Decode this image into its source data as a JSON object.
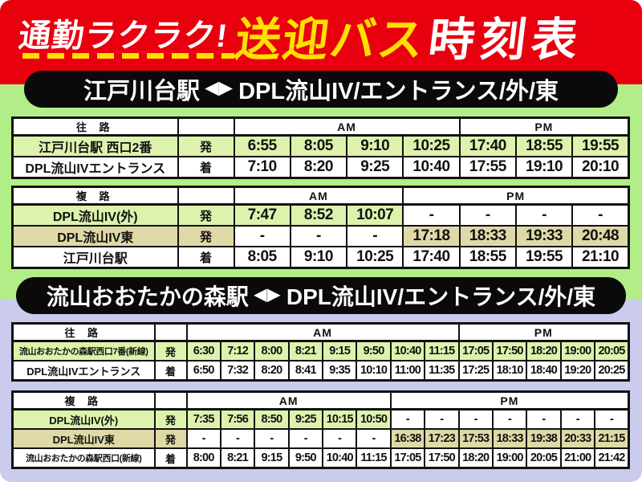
{
  "title": {
    "tagline": "通勤ラクラク!",
    "main_yellow": "送迎バス",
    "main_white": "時刻表"
  },
  "colors": {
    "header_red": "#e8000f",
    "accent_yellow": "#ffe100",
    "page_green": "#b2ee87",
    "page_lavender": "#cbcbed",
    "row_green": "#ddf3ad",
    "row_tan": "#ded9a6",
    "banner_black": "#0a0a0a",
    "table_border": "#111111"
  },
  "banners": [
    {
      "left": "江戸川台駅",
      "arrows": "◀▶",
      "right": "DPL流山IV/エントランス/外/東"
    },
    {
      "left": "流山おおたかの森駅",
      "arrows": "◀▶",
      "right": "DPL流山IV/エントランス/外/東"
    }
  ],
  "tables": [
    {
      "direction_label": "往 路",
      "am_label": "AM",
      "pm_label": "PM",
      "am_cols": 4,
      "pm_cols": 3,
      "rows": [
        {
          "station": "江戸川台駅 西口2番",
          "mark": "発",
          "bg": "green",
          "times": [
            "6:55",
            "8:05",
            "9:10",
            "10:25",
            "17:40",
            "18:55",
            "19:55"
          ]
        },
        {
          "station": "DPL流山IVエントランス",
          "mark": "着",
          "bg": "white",
          "times": [
            "7:10",
            "8:20",
            "9:25",
            "10:40",
            "17:55",
            "19:10",
            "20:10"
          ]
        }
      ]
    },
    {
      "direction_label": "複 路",
      "am_label": "AM",
      "pm_label": "PM",
      "am_cols": 3,
      "pm_cols": 4,
      "rows": [
        {
          "station": "DPL流山IV(外)",
          "mark": "発",
          "bg": "green",
          "times": [
            "7:47",
            "8:52",
            "10:07",
            "-",
            "-",
            "-",
            "-"
          ]
        },
        {
          "station": "DPL流山IV東",
          "mark": "発",
          "bg": "tan",
          "times": [
            "-",
            "-",
            "-",
            "17:18",
            "18:33",
            "19:33",
            "20:48"
          ]
        },
        {
          "station": "江戸川台駅",
          "mark": "着",
          "bg": "white",
          "times": [
            "8:05",
            "9:10",
            "10:25",
            "17:40",
            "18:55",
            "19:55",
            "21:10"
          ]
        }
      ]
    },
    {
      "direction_label": "往 路",
      "am_label": "AM",
      "pm_label": "PM",
      "am_cols": 8,
      "pm_cols": 5,
      "rows": [
        {
          "station": "流山おおたかの森駅西口7番(新線)",
          "mark": "発",
          "bg": "green",
          "times": [
            "6:30",
            "7:12",
            "8:00",
            "8:21",
            "9:15",
            "9:50",
            "10:40",
            "11:15",
            "17:05",
            "17:50",
            "18:20",
            "19:00",
            "20:05"
          ]
        },
        {
          "station": "DPL流山IVエントランス",
          "mark": "着",
          "bg": "white",
          "times": [
            "6:50",
            "7:32",
            "8:20",
            "8:41",
            "9:35",
            "10:10",
            "11:00",
            "11:35",
            "17:25",
            "18:10",
            "18:40",
            "19:20",
            "20:25"
          ]
        }
      ]
    },
    {
      "direction_label": "複 路",
      "am_label": "AM",
      "pm_label": "PM",
      "am_cols": 6,
      "pm_cols": 7,
      "rows": [
        {
          "station": "DPL流山IV(外)",
          "mark": "発",
          "bg": "green",
          "times": [
            "7:35",
            "7:56",
            "8:50",
            "9:25",
            "10:15",
            "10:50",
            "-",
            "-",
            "-",
            "-",
            "-",
            "-",
            "-"
          ]
        },
        {
          "station": "DPL流山IV東",
          "mark": "発",
          "bg": "tan",
          "times": [
            "-",
            "-",
            "-",
            "-",
            "-",
            "-",
            "16:38",
            "17:23",
            "17:53",
            "18:33",
            "19:38",
            "20:33",
            "21:15"
          ]
        },
        {
          "station": "流山おおたかの森駅西口(新線)",
          "mark": "着",
          "bg": "white",
          "times": [
            "8:00",
            "8:21",
            "9:15",
            "9:50",
            "10:40",
            "11:15",
            "17:05",
            "17:50",
            "18:20",
            "19:00",
            "20:05",
            "21:00",
            "21:42"
          ]
        }
      ]
    }
  ]
}
